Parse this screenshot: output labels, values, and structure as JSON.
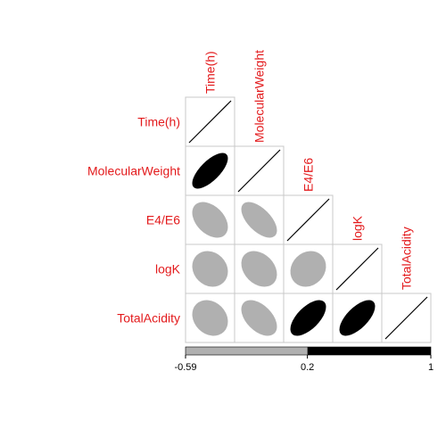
{
  "chart_data": {
    "type": "correlation-ellipse-matrix",
    "variables": [
      "Time(h)",
      "MolecularWeight",
      "E4/E6",
      "logK",
      "TotalAcidity"
    ],
    "label_color": "#e31a1c",
    "lower_triangle": [
      {
        "row": "MolecularWeight",
        "col": "Time(h)",
        "r": 0.7
      },
      {
        "row": "E4/E6",
        "col": "Time(h)",
        "r": -0.4
      },
      {
        "row": "E4/E6",
        "col": "MolecularWeight",
        "r": -0.59
      },
      {
        "row": "logK",
        "col": "Time(h)",
        "r": -0.15
      },
      {
        "row": "logK",
        "col": "MolecularWeight",
        "r": -0.3
      },
      {
        "row": "logK",
        "col": "E4/E6",
        "r": 0.15
      },
      {
        "row": "TotalAcidity",
        "col": "Time(h)",
        "r": -0.2
      },
      {
        "row": "TotalAcidity",
        "col": "MolecularWeight",
        "r": -0.48
      },
      {
        "row": "TotalAcidity",
        "col": "E4/E6",
        "r": 0.62
      },
      {
        "row": "TotalAcidity",
        "col": "logK",
        "r": 0.65
      }
    ],
    "colorbar": {
      "ticks": [
        "-0.59",
        "0.2",
        "1"
      ],
      "min": -0.59,
      "break": 0.2,
      "max": 1,
      "colors": [
        "#b0b0b0",
        "#000000"
      ]
    }
  }
}
